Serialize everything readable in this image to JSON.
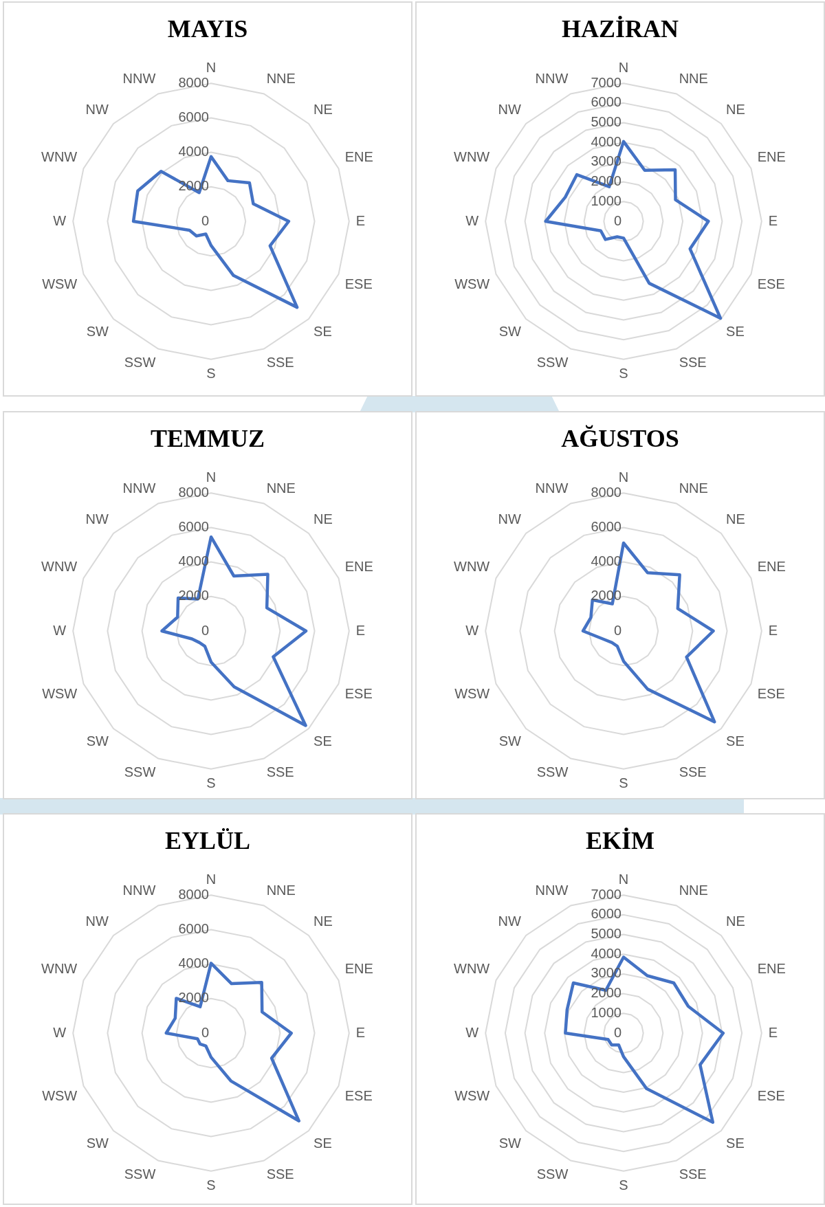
{
  "chart_data": [
    {
      "type": "radar",
      "title": "MAYIS",
      "categories": [
        "N",
        "NNE",
        "NE",
        "ENE",
        "E",
        "ESE",
        "SE",
        "SSE",
        "S",
        "SSW",
        "SW",
        "WSW",
        "W",
        "WNW",
        "NW",
        "NNW"
      ],
      "series": [
        {
          "color": "#4472c4",
          "values": [
            3750,
            2550,
            3150,
            2650,
            4500,
            3700,
            7050,
            3400,
            1400,
            800,
            1200,
            1350,
            4500,
            4600,
            4100,
            1800
          ]
        }
      ],
      "ylim": [
        0,
        8000
      ],
      "yticks": [
        0,
        2000,
        4000,
        6000,
        8000
      ],
      "grid": true,
      "marker": "none"
    },
    {
      "type": "radar",
      "title": "HAZİRAN",
      "categories": [
        "N",
        "NNE",
        "NE",
        "ENE",
        "E",
        "ESE",
        "SE",
        "SSE",
        "S",
        "SSW",
        "SW",
        "WSW",
        "W",
        "WNW",
        "NW",
        "NNW"
      ],
      "series": [
        {
          "color": "#4472c4",
          "values": [
            4050,
            2800,
            3700,
            2850,
            4300,
            3650,
            6950,
            3400,
            850,
            850,
            1300,
            1250,
            3950,
            3200,
            3350,
            1900
          ]
        }
      ],
      "ylim": [
        0,
        7000
      ],
      "yticks": [
        0,
        1000,
        2000,
        3000,
        4000,
        5000,
        6000,
        7000
      ],
      "grid": true,
      "marker": "none"
    },
    {
      "type": "radar",
      "title": "TEMMUZ",
      "categories": [
        "N",
        "NNE",
        "NE",
        "ENE",
        "E",
        "ESE",
        "SE",
        "SSE",
        "S",
        "SSW",
        "SW",
        "WSW",
        "W",
        "WNW",
        "NW",
        "NNW"
      ],
      "series": [
        {
          "color": "#4472c4",
          "values": [
            5450,
            3450,
            4650,
            3500,
            5500,
            3900,
            7750,
            3500,
            1800,
            950,
            950,
            1200,
            2850,
            2100,
            2700,
            2000
          ]
        }
      ],
      "ylim": [
        0,
        8000
      ],
      "yticks": [
        0,
        2000,
        4000,
        6000,
        8000
      ],
      "grid": true,
      "marker": "none"
    },
    {
      "type": "radar",
      "title": "AĞUSTOS",
      "categories": [
        "N",
        "NNE",
        "NE",
        "ENE",
        "E",
        "ESE",
        "SE",
        "SSE",
        "S",
        "SSW",
        "SW",
        "WSW",
        "W",
        "WNW",
        "NW",
        "NNW"
      ],
      "series": [
        {
          "color": "#4472c4",
          "values": [
            5100,
            3650,
            4600,
            3400,
            5200,
            3950,
            7450,
            3650,
            1750,
            950,
            950,
            1250,
            2350,
            2050,
            2550,
            1700
          ]
        }
      ],
      "ylim": [
        0,
        8000
      ],
      "yticks": [
        0,
        2000,
        4000,
        6000,
        8000
      ],
      "grid": true,
      "marker": "none"
    },
    {
      "type": "radar",
      "title": "EYLÜL",
      "categories": [
        "N",
        "NNE",
        "NE",
        "ENE",
        "E",
        "ESE",
        "SE",
        "SSE",
        "S",
        "SSW",
        "SW",
        "WSW",
        "W",
        "WNW",
        "NW",
        "NNW"
      ],
      "series": [
        {
          "color": "#4472c4",
          "values": [
            4050,
            3100,
            4150,
            3200,
            4650,
            3800,
            7200,
            3000,
            1400,
            800,
            900,
            850,
            2600,
            2250,
            2850,
            1650
          ]
        }
      ],
      "ylim": [
        0,
        8000
      ],
      "yticks": [
        0,
        2000,
        4000,
        6000,
        8000
      ],
      "grid": true,
      "marker": "none"
    },
    {
      "type": "radar",
      "title": "EKİM",
      "categories": [
        "N",
        "NNE",
        "NE",
        "ENE",
        "E",
        "ESE",
        "SE",
        "SSE",
        "S",
        "SSW",
        "SW",
        "WSW",
        "W",
        "WNW",
        "NW",
        "NNW"
      ],
      "series": [
        {
          "color": "#4472c4",
          "values": [
            3850,
            3150,
            3600,
            3550,
            5050,
            4200,
            6400,
            3050,
            1200,
            650,
            850,
            850,
            2950,
            3100,
            3600,
            2350
          ]
        }
      ],
      "ylim": [
        0,
        7000
      ],
      "yticks": [
        0,
        1000,
        2000,
        3000,
        4000,
        5000,
        6000,
        7000
      ],
      "grid": true,
      "marker": "none"
    }
  ]
}
